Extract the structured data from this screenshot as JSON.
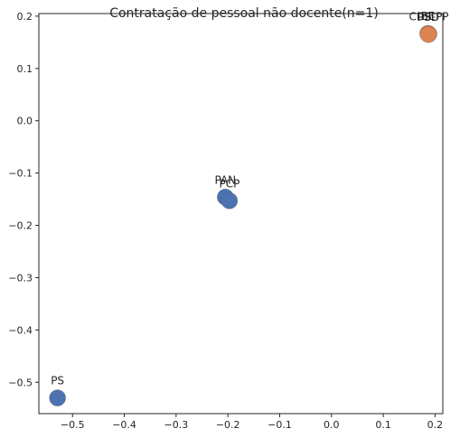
{
  "chart_data": {
    "type": "scatter",
    "title": "Contratação de pessoal não docente(n=1)",
    "xlabel": "",
    "ylabel": "",
    "xlim": [
      -0.565,
      0.215
    ],
    "ylim": [
      -0.56,
      0.205
    ],
    "x_ticks": [
      -0.5,
      -0.4,
      -0.3,
      -0.2,
      -0.1,
      0.0,
      0.1,
      0.2
    ],
    "x_tick_labels": [
      "−0.5",
      "−0.4",
      "−0.3",
      "−0.2",
      "−0.1",
      "0.0",
      "0.1",
      "0.2"
    ],
    "y_ticks": [
      0.2,
      0.1,
      0.0,
      -0.1,
      -0.2,
      -0.3,
      -0.4,
      -0.5
    ],
    "y_tick_labels": [
      "0.2",
      "0.1",
      "0.0",
      "−0.1",
      "−0.2",
      "−0.3",
      "−0.4",
      "−0.5"
    ],
    "grid": false,
    "colors": {
      "blue": "#4c72b0",
      "orange": "#dd8452"
    },
    "points": [
      {
        "label": "PS",
        "x": -0.529,
        "y": -0.53,
        "color": "blue"
      },
      {
        "label": "PAN",
        "x": -0.205,
        "y": -0.146,
        "color": "blue"
      },
      {
        "label": "PCP",
        "x": -0.197,
        "y": -0.153,
        "color": "blue"
      },
      {
        "label": "BE",
        "x": 0.186,
        "y": 0.167,
        "color": "orange"
      },
      {
        "label": "CDS-PP",
        "x": 0.188,
        "y": 0.166,
        "color": "orange"
      },
      {
        "label": "PSD",
        "x": 0.187,
        "y": 0.165,
        "color": "orange"
      }
    ]
  }
}
